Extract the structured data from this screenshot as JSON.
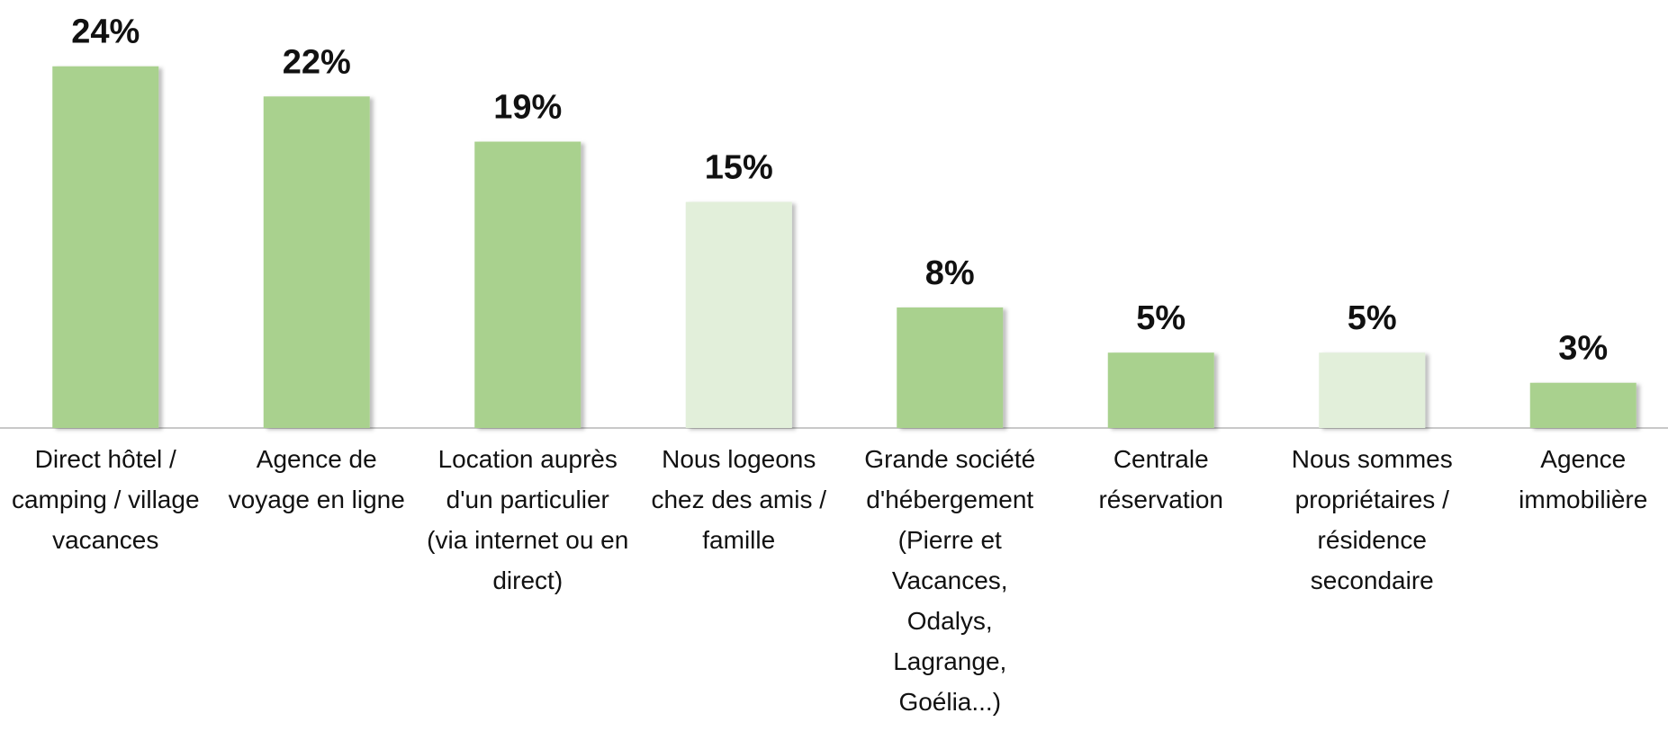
{
  "chart_data": {
    "type": "bar",
    "categories": [
      "Direct hôtel / camping / village vacances",
      "Agence de voyage en ligne",
      "Location auprès d'un particulier (via internet ou en direct)",
      "Nous logeons chez des amis / famille",
      "Grande société d'hébergement (Pierre et Vacances, Odalys, Lagrange, Goélia...)",
      "Centrale réservation",
      "Nous sommes propriétaires / résidence secondaire",
      "Agence immobilière"
    ],
    "values": [
      24,
      22,
      19,
      15,
      8,
      5,
      5,
      3
    ],
    "value_labels": [
      "24%",
      "22%",
      "19%",
      "15%",
      "8%",
      "5%",
      "5%",
      "3%"
    ],
    "colors": [
      "#a9d18e",
      "#a9d18e",
      "#a9d18e",
      "#e2efda",
      "#a9d18e",
      "#a9d18e",
      "#e2efda",
      "#a9d18e"
    ],
    "ylim": [
      0,
      28.4
    ]
  }
}
